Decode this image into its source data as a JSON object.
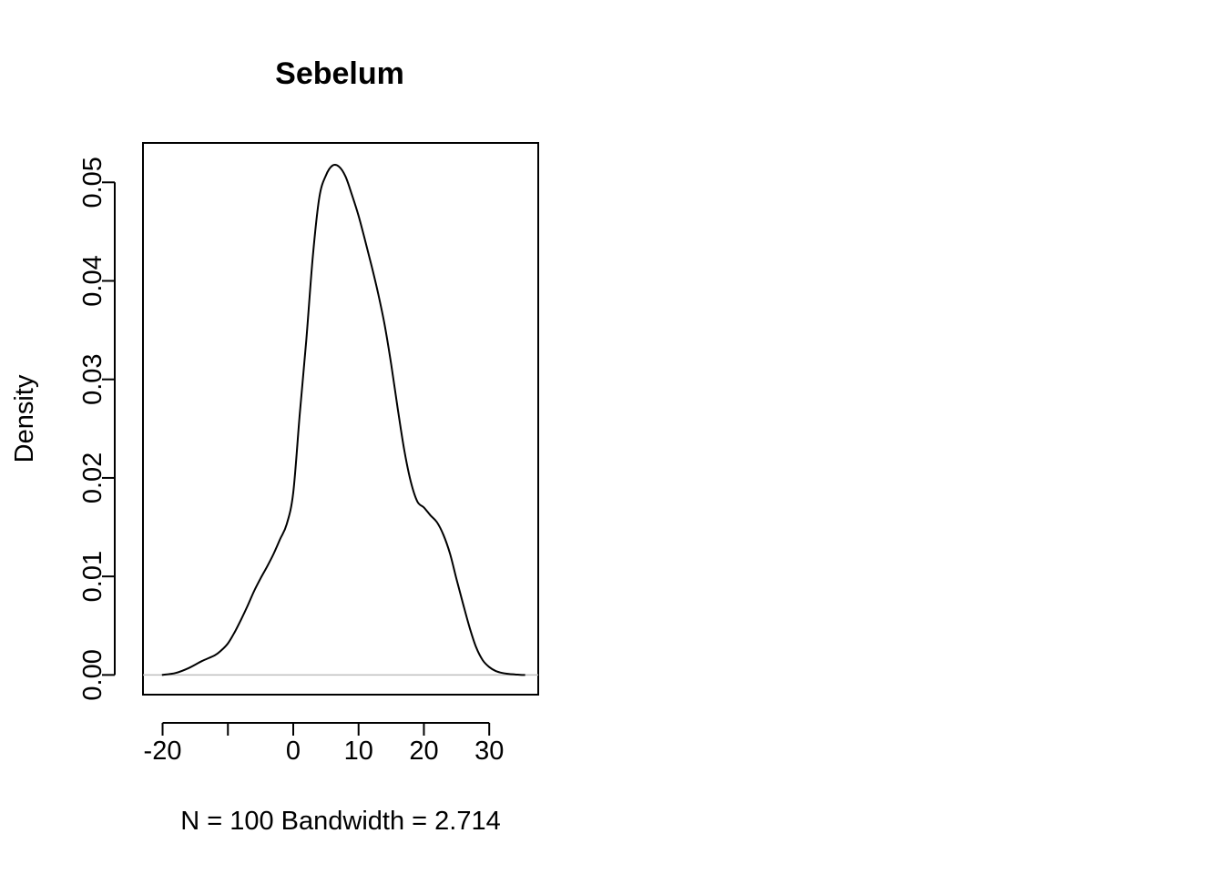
{
  "chart_data": {
    "type": "line",
    "title": "Sebelum",
    "xlabel": "N = 100   Bandwidth = 2.714",
    "ylabel": "Density",
    "xlim": [
      -23,
      37.5
    ],
    "ylim": [
      -0.002,
      0.054
    ],
    "x_ticks": [
      -20,
      -10,
      0,
      10,
      20,
      30
    ],
    "x_tick_labels": [
      "-20",
      "",
      "0",
      "10",
      "20",
      "30"
    ],
    "y_ticks": [
      0,
      0.01,
      0.02,
      0.03,
      0.04,
      0.05
    ],
    "y_tick_labels": [
      "0.00",
      "0.01",
      "0.02",
      "0.03",
      "0.04",
      "0.05"
    ],
    "baseline": 0,
    "grid": false,
    "series": [
      {
        "color": "#000000",
        "x": [
          -20.1,
          -18,
          -16,
          -14,
          -12,
          -11,
          -10,
          -9,
          -8,
          -7,
          -6,
          -5,
          -4,
          -3,
          -2,
          -1,
          0,
          1,
          2,
          3,
          4,
          5,
          6,
          7,
          8,
          9,
          10,
          11,
          12,
          13,
          14,
          15,
          16,
          17,
          18,
          19,
          20,
          21,
          22,
          23,
          24,
          25,
          26,
          27,
          28,
          29,
          30,
          31,
          32,
          33,
          34,
          35,
          35.5
        ],
        "y": [
          0.0,
          0.0002,
          0.0007,
          0.0014,
          0.002,
          0.0025,
          0.0032,
          0.0043,
          0.0056,
          0.007,
          0.0085,
          0.0098,
          0.011,
          0.0123,
          0.0138,
          0.0153,
          0.0185,
          0.0265,
          0.034,
          0.0425,
          0.0485,
          0.0507,
          0.0517,
          0.0516,
          0.0506,
          0.0487,
          0.0466,
          0.0441,
          0.0415,
          0.0387,
          0.0355,
          0.0315,
          0.027,
          0.0228,
          0.0196,
          0.0176,
          0.017,
          0.0162,
          0.0155,
          0.0142,
          0.0123,
          0.0097,
          0.0072,
          0.0048,
          0.0028,
          0.0015,
          0.0008,
          0.0004,
          0.0002,
          0.0001,
          5e-05,
          0.0,
          0.0
        ]
      }
    ]
  }
}
